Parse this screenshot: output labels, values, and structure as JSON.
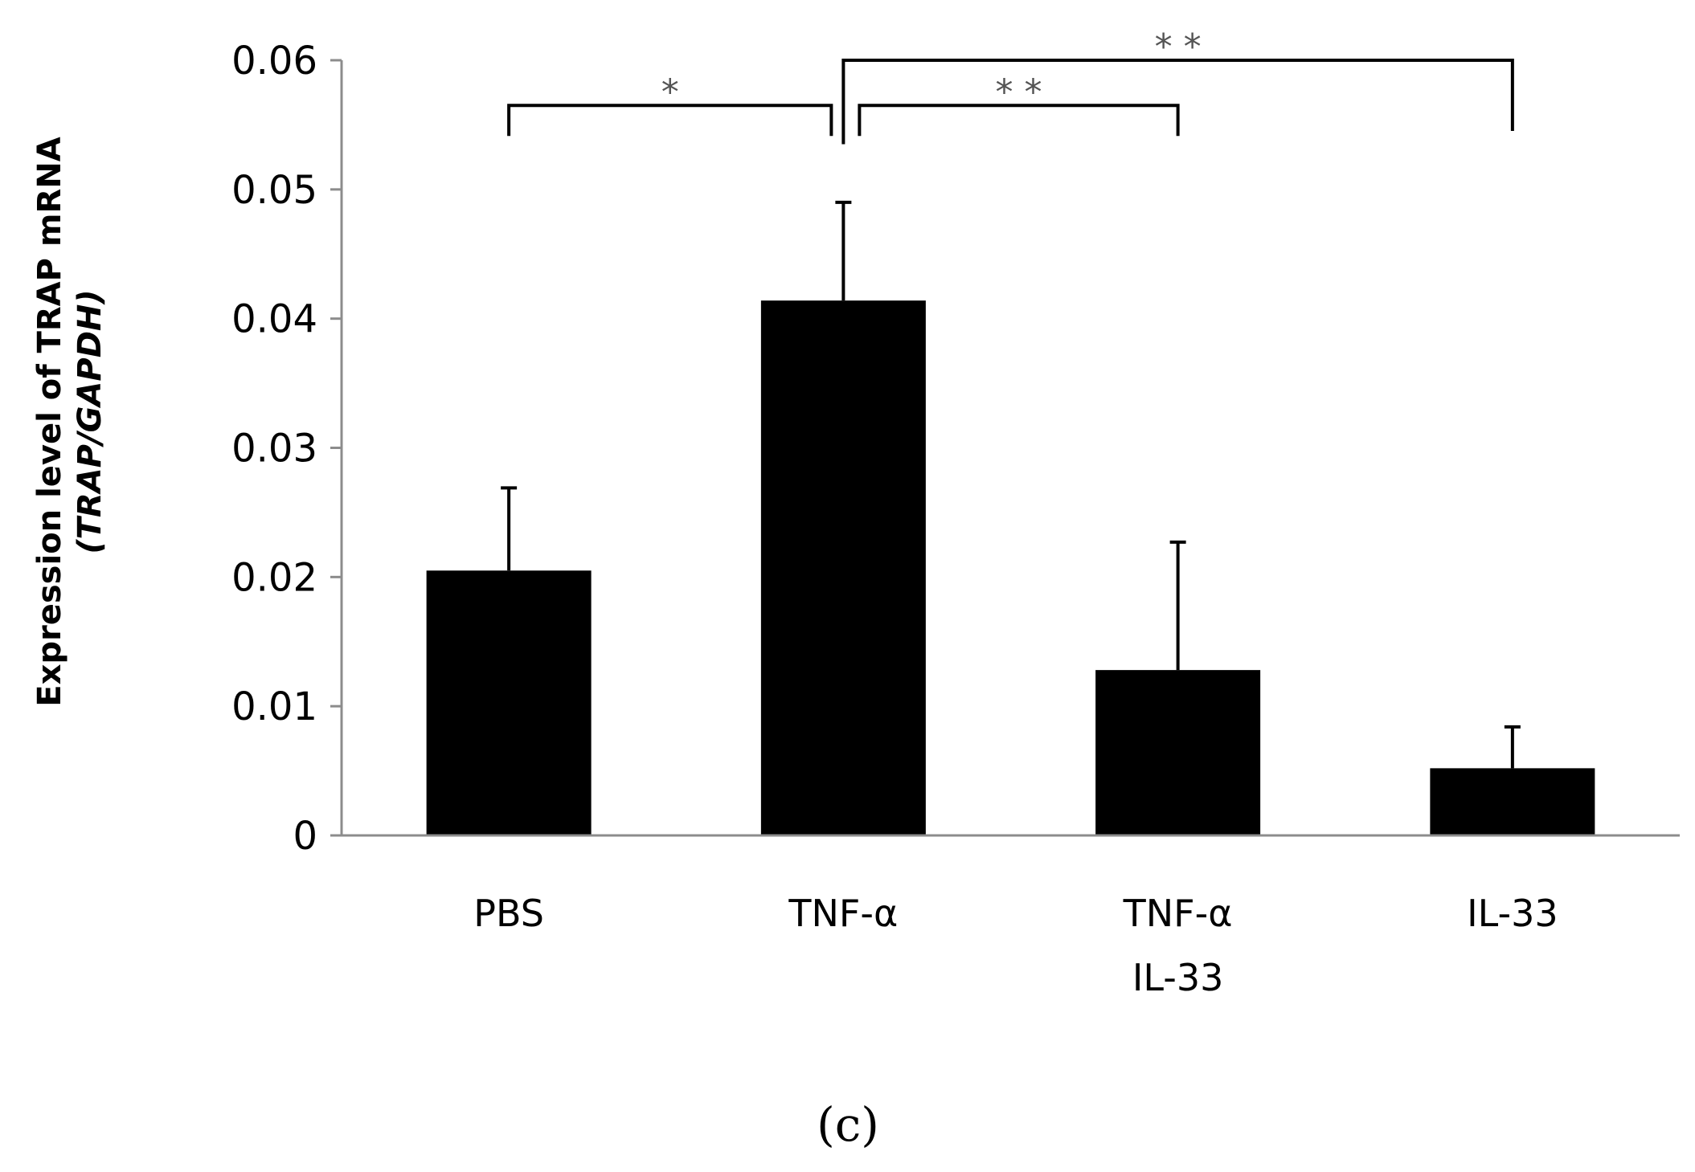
{
  "chart_data": {
    "type": "bar",
    "categories": [
      {
        "lines": [
          "PBS"
        ]
      },
      {
        "lines": [
          "TNF-α"
        ]
      },
      {
        "lines": [
          "TNF-α",
          "IL-33"
        ]
      },
      {
        "lines": [
          "IL-33"
        ]
      }
    ],
    "values": [
      0.0205,
      0.0414,
      0.0128,
      0.0052
    ],
    "errors": [
      0.0064,
      0.0076,
      0.0099,
      0.0032
    ],
    "ylim": [
      0,
      0.06
    ],
    "yticks": [
      "0",
      "0.01",
      "0.02",
      "0.03",
      "0.04",
      "0.05",
      "0.06"
    ],
    "ylabel_line1": "Expression level of TRAP mRNA",
    "ylabel_line2": "(TRAP/GAPDH)",
    "bar_color": "#000000",
    "axis_color": "#8c8c8c",
    "significance": [
      {
        "from": 0,
        "to": 1,
        "label": "*",
        "level": 0.0565
      },
      {
        "from": 1,
        "to": 2,
        "label": "* *",
        "level": 0.0565
      },
      {
        "from": 1,
        "to": 3,
        "label": "* *",
        "level": 0.06
      }
    ]
  },
  "panel_label": "(c)"
}
